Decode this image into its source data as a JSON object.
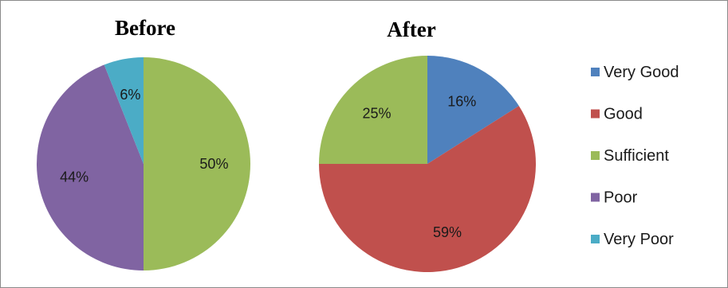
{
  "chart_data": [
    {
      "type": "pie",
      "title": "Before",
      "categories": [
        "Very Good",
        "Good",
        "Sufficient",
        "Poor",
        "Very Poor"
      ],
      "values": [
        0,
        0,
        50,
        44,
        6
      ],
      "labels": [
        "",
        "",
        "50%",
        "44%",
        "6%"
      ]
    },
    {
      "type": "pie",
      "title": "After",
      "categories": [
        "Very Good",
        "Good",
        "Sufficient",
        "Poor",
        "Very Poor"
      ],
      "values": [
        16,
        59,
        25,
        0,
        0
      ],
      "labels": [
        "16%",
        "59%",
        "25%",
        "",
        ""
      ]
    }
  ],
  "legend": {
    "position": "right",
    "items": [
      {
        "label": "Very Good",
        "color": "#4f81bd"
      },
      {
        "label": "Good",
        "color": "#c0504d"
      },
      {
        "label": "Sufficient",
        "color": "#9bbb59"
      },
      {
        "label": "Poor",
        "color": "#8064a2"
      },
      {
        "label": "Very Poor",
        "color": "#4bacc6"
      }
    ]
  }
}
